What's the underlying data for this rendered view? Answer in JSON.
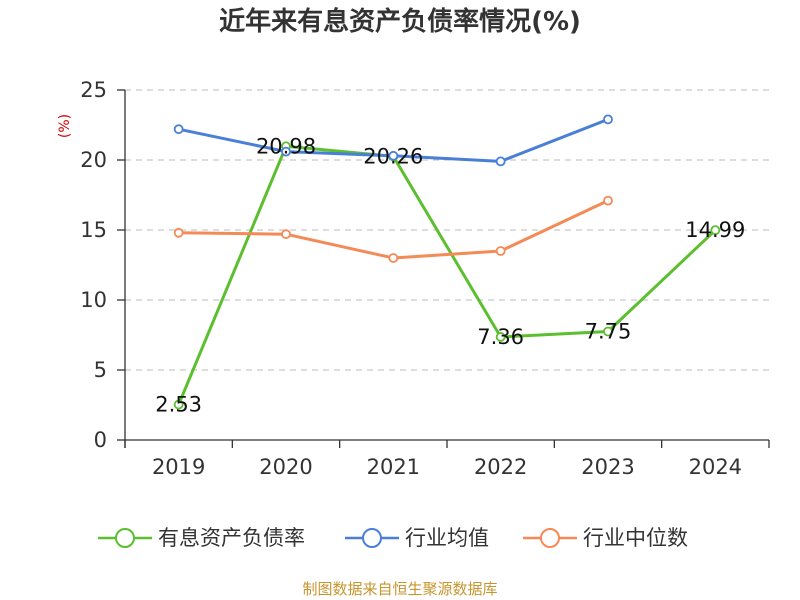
{
  "chart_data": {
    "type": "line",
    "title": "近年来有息资产负债率情况(%)",
    "ylabel": "(%)",
    "xlabel": "",
    "categories": [
      "2019",
      "2020",
      "2021",
      "2022",
      "2023",
      "2024"
    ],
    "ylim": [
      0,
      25
    ],
    "yticks": [
      0,
      5,
      10,
      15,
      20,
      25
    ],
    "grid": true,
    "legend_position": "bottom",
    "series": [
      {
        "name": "有息资产负债率",
        "color": "#5cbf2f",
        "values": [
          2.53,
          20.98,
          20.26,
          7.36,
          7.75,
          14.99
        ],
        "labels": [
          "2.53",
          "20.98",
          "20.26",
          "7.36",
          "7.75",
          "14.99"
        ]
      },
      {
        "name": "行业均值",
        "color": "#4a7fd8",
        "values": [
          22.2,
          20.6,
          20.3,
          19.9,
          22.9,
          null
        ]
      },
      {
        "name": "行业中位数",
        "color": "#f48a55",
        "values": [
          14.8,
          14.7,
          13.0,
          13.5,
          17.1,
          null
        ]
      }
    ]
  },
  "footer": "制图数据来自恒生聚源数据库"
}
